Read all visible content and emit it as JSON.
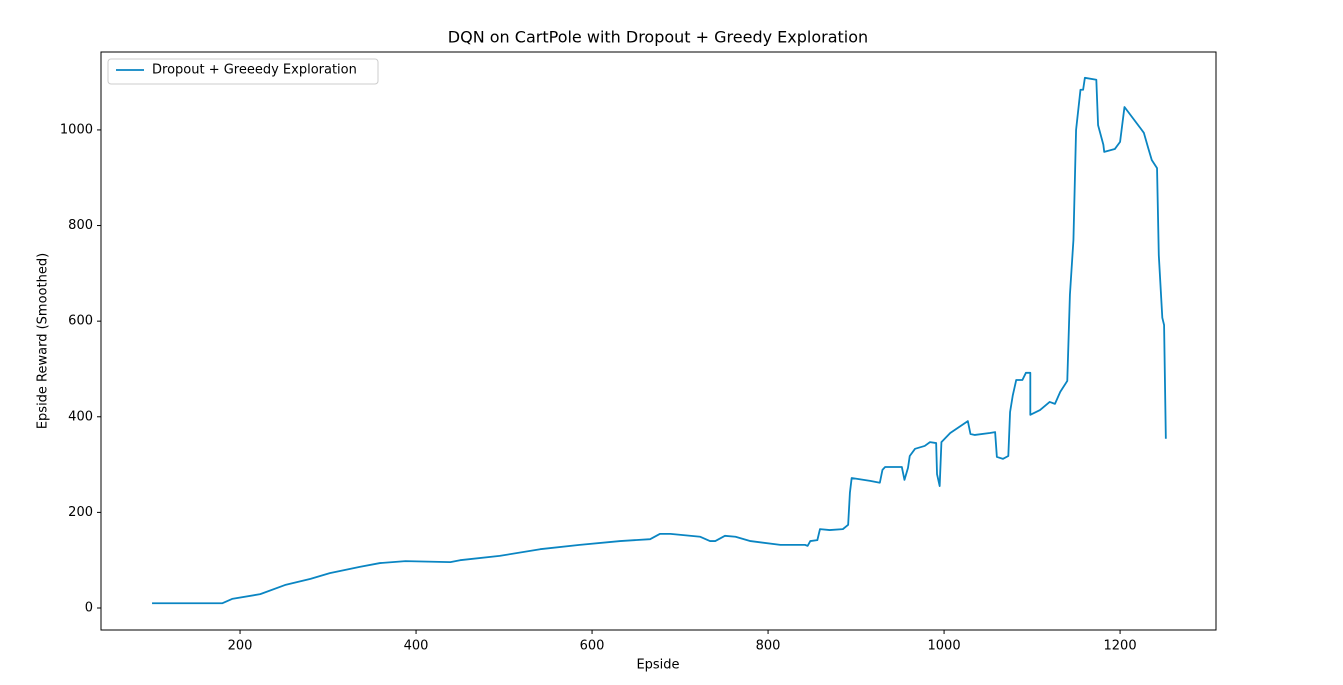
{
  "chart_data": {
    "type": "line",
    "title": "DQN on CartPole with Dropout + Greedy Exploration",
    "x_label": "Epside",
    "y_label": "Epside Reward (Smoothed)",
    "x": [
      100,
      180,
      191,
      223,
      251,
      280,
      302,
      336,
      359,
      388,
      439,
      450,
      495,
      541,
      586,
      632,
      666,
      677,
      689,
      723,
      734,
      740,
      751,
      763,
      780,
      814,
      842,
      845,
      848,
      856,
      859,
      870,
      885,
      891,
      893,
      895,
      916,
      927,
      930,
      933,
      944,
      952,
      955,
      959,
      961,
      967,
      978,
      984,
      991,
      992,
      995,
      997,
      1007,
      1027,
      1030,
      1035,
      1052,
      1058,
      1060,
      1067,
      1073,
      1075,
      1078,
      1082,
      1089,
      1093,
      1098,
      1098,
      1109,
      1120,
      1126,
      1132,
      1140,
      1143,
      1147,
      1150,
      1155,
      1158,
      1160,
      1173,
      1175,
      1181,
      1182,
      1194,
      1200,
      1205,
      1223,
      1227,
      1232,
      1236,
      1242,
      1244,
      1248,
      1250,
      1252
    ],
    "series": [
      {
        "name": "Dropout + Greeedy Exploration",
        "color": "#0a85c2",
        "values": [
          10,
          10,
          19,
          29,
          48,
          61,
          73,
          86,
          94,
          98,
          96,
          100,
          109,
          123,
          132,
          140,
          144,
          155,
          155,
          149,
          140,
          140,
          151,
          149,
          140,
          132,
          132,
          130,
          140,
          142,
          165,
          163,
          165,
          174,
          241,
          272,
          266,
          262,
          289,
          295,
          295,
          295,
          268,
          293,
          318,
          333,
          339,
          347,
          345,
          280,
          255,
          347,
          366,
          391,
          364,
          362,
          366,
          368,
          316,
          312,
          318,
          410,
          444,
          477,
          477,
          492,
          492,
          404,
          414,
          431,
          427,
          452,
          475,
          655,
          770,
          1000,
          1084,
          1084,
          1109,
          1105,
          1010,
          969,
          954,
          960,
          975,
          1048,
          1004,
          994,
          962,
          937,
          920,
          738,
          607,
          592,
          354
        ]
      }
    ],
    "xlim": [
      42,
      1309
    ],
    "ylim": [
      -46,
      1163
    ],
    "xticks": [
      200,
      400,
      600,
      800,
      1000,
      1200
    ],
    "yticks": [
      0,
      200,
      400,
      600,
      800,
      1000
    ],
    "legend": "upper left"
  }
}
